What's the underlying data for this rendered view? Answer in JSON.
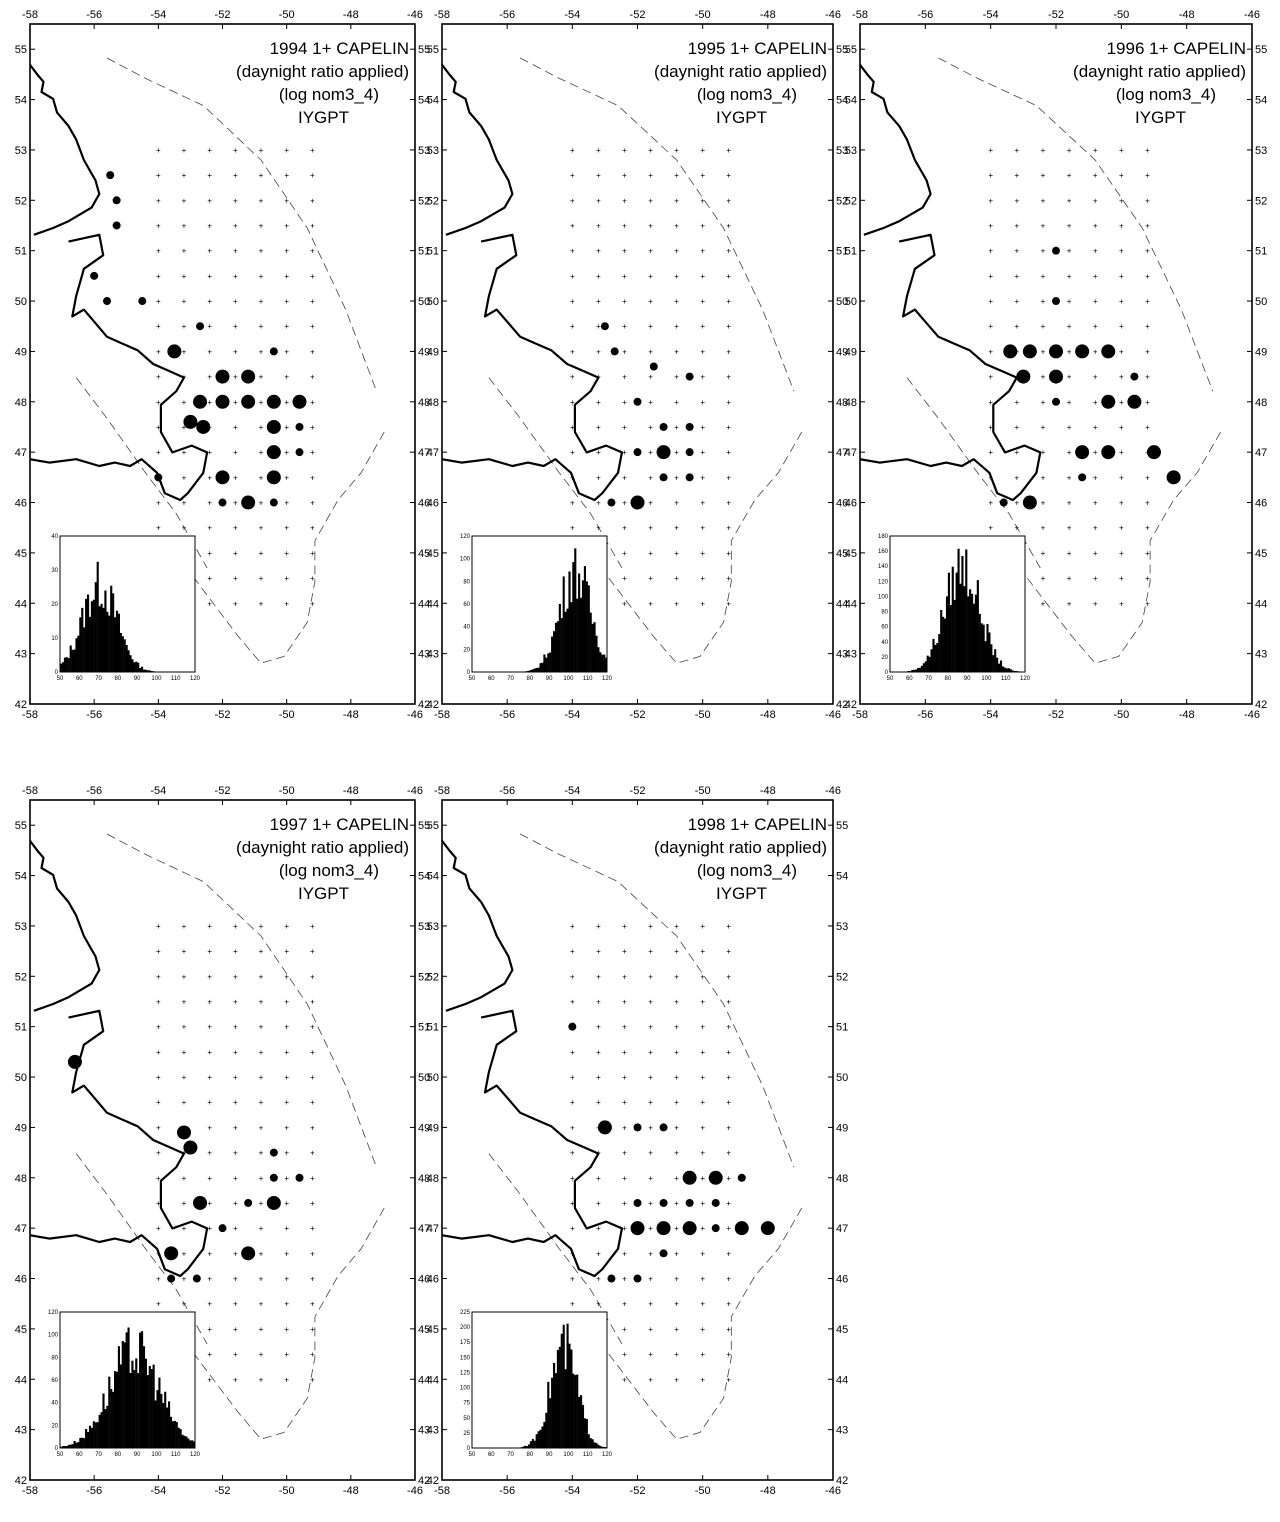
{
  "figure": {
    "axis": {
      "lon_ticks": [
        -58,
        -56,
        -54,
        -52,
        -50,
        -48,
        -46
      ],
      "lat_ticks": [
        42,
        43,
        44,
        45,
        46,
        47,
        48,
        49,
        50,
        51,
        52,
        53,
        54,
        55
      ],
      "lon_range": [
        -58,
        -46
      ],
      "lat_range": [
        42,
        55.5
      ]
    },
    "panels": [
      {
        "title_lines": [
          "1994 1+ CAPELIN",
          "(daynight ratio applied)",
          "(log nom3_4)",
          "IYGPT"
        ],
        "inset": {
          "x_ticks": [
            50,
            60,
            70,
            80,
            90,
            100,
            110,
            120
          ],
          "y_ticks": [
            0,
            10,
            20,
            30,
            40
          ],
          "y_max": 40,
          "peak_x": 70,
          "spread": 9,
          "peak_y": 30
        },
        "stations": [
          {
            "lon": -55.5,
            "lat": 52.5,
            "s": 2
          },
          {
            "lon": -55.3,
            "lat": 52.0,
            "s": 2
          },
          {
            "lon": -55.3,
            "lat": 51.5,
            "s": 2
          },
          {
            "lon": -56.0,
            "lat": 50.5,
            "s": 2
          },
          {
            "lon": -55.6,
            "lat": 50.0,
            "s": 2
          },
          {
            "lon": -54.5,
            "lat": 50.0,
            "s": 2
          },
          {
            "lon": -53.5,
            "lat": 49.0,
            "s": 3
          },
          {
            "lon": -52.7,
            "lat": 49.5,
            "s": 2
          },
          {
            "lon": -52.0,
            "lat": 48.5,
            "s": 3
          },
          {
            "lon": -51.2,
            "lat": 48.5,
            "s": 3
          },
          {
            "lon": -52.7,
            "lat": 48.0,
            "s": 3
          },
          {
            "lon": -52.0,
            "lat": 48.0,
            "s": 3
          },
          {
            "lon": -51.2,
            "lat": 48.0,
            "s": 3
          },
          {
            "lon": -50.4,
            "lat": 48.0,
            "s": 3
          },
          {
            "lon": -49.6,
            "lat": 48.0,
            "s": 3
          },
          {
            "lon": -53.0,
            "lat": 47.6,
            "s": 3
          },
          {
            "lon": -52.6,
            "lat": 47.5,
            "s": 3
          },
          {
            "lon": -50.4,
            "lat": 47.5,
            "s": 3
          },
          {
            "lon": -49.6,
            "lat": 47.5,
            "s": 2
          },
          {
            "lon": -50.4,
            "lat": 47.0,
            "s": 3
          },
          {
            "lon": -49.6,
            "lat": 47.0,
            "s": 2
          },
          {
            "lon": -54.0,
            "lat": 46.5,
            "s": 2
          },
          {
            "lon": -52.0,
            "lat": 46.5,
            "s": 3
          },
          {
            "lon": -50.4,
            "lat": 46.5,
            "s": 3
          },
          {
            "lon": -51.2,
            "lat": 46.0,
            "s": 3
          },
          {
            "lon": -52.0,
            "lat": 46.0,
            "s": 2
          },
          {
            "lon": -50.4,
            "lat": 46.0,
            "s": 2
          },
          {
            "lon": -50.4,
            "lat": 49.0,
            "s": 2
          }
        ]
      },
      {
        "title_lines": [
          "1995 1+ CAPELIN",
          "(daynight ratio applied)",
          "(log nom3_4)",
          "IYGPT"
        ],
        "inset": {
          "x_ticks": [
            50,
            60,
            70,
            80,
            90,
            100,
            110,
            120
          ],
          "y_ticks": [
            0,
            20,
            40,
            60,
            80,
            100,
            120
          ],
          "y_max": 120,
          "peak_x": 103,
          "spread": 8,
          "peak_y": 105
        },
        "stations": [
          {
            "lon": -53.0,
            "lat": 49.5,
            "s": 2
          },
          {
            "lon": -52.7,
            "lat": 49.0,
            "s": 2
          },
          {
            "lon": -51.5,
            "lat": 48.7,
            "s": 2
          },
          {
            "lon": -50.4,
            "lat": 48.5,
            "s": 2
          },
          {
            "lon": -52.0,
            "lat": 48.0,
            "s": 2
          },
          {
            "lon": -51.2,
            "lat": 47.5,
            "s": 2
          },
          {
            "lon": -50.4,
            "lat": 47.5,
            "s": 2
          },
          {
            "lon": -52.0,
            "lat": 47.0,
            "s": 2
          },
          {
            "lon": -51.2,
            "lat": 47.0,
            "s": 3
          },
          {
            "lon": -50.4,
            "lat": 47.0,
            "s": 2
          },
          {
            "lon": -51.2,
            "lat": 46.5,
            "s": 2
          },
          {
            "lon": -52.8,
            "lat": 46.0,
            "s": 2
          },
          {
            "lon": -52.0,
            "lat": 46.0,
            "s": 3
          },
          {
            "lon": -50.4,
            "lat": 46.5,
            "s": 2
          }
        ]
      },
      {
        "title_lines": [
          "1996 1+ CAPELIN",
          "(daynight ratio applied)",
          "(log nom3_4)",
          "IYGPT"
        ],
        "inset": {
          "x_ticks": [
            50,
            60,
            70,
            80,
            90,
            100,
            110,
            120
          ],
          "y_ticks": [
            0,
            20,
            40,
            60,
            80,
            100,
            120,
            140,
            160,
            180
          ],
          "y_max": 180,
          "peak_x": 87,
          "spread": 9,
          "peak_y": 165
        },
        "stations": [
          {
            "lon": -52.0,
            "lat": 51.0,
            "s": 2
          },
          {
            "lon": -52.0,
            "lat": 50.0,
            "s": 2
          },
          {
            "lon": -53.4,
            "lat": 49.0,
            "s": 3
          },
          {
            "lon": -52.8,
            "lat": 49.0,
            "s": 3
          },
          {
            "lon": -52.0,
            "lat": 49.0,
            "s": 3
          },
          {
            "lon": -51.2,
            "lat": 49.0,
            "s": 3
          },
          {
            "lon": -50.4,
            "lat": 49.0,
            "s": 3
          },
          {
            "lon": -53.0,
            "lat": 48.5,
            "s": 3
          },
          {
            "lon": -52.0,
            "lat": 48.5,
            "s": 3
          },
          {
            "lon": -50.4,
            "lat": 48.0,
            "s": 3
          },
          {
            "lon": -49.6,
            "lat": 48.0,
            "s": 3
          },
          {
            "lon": -52.0,
            "lat": 48.0,
            "s": 2
          },
          {
            "lon": -51.2,
            "lat": 47.0,
            "s": 3
          },
          {
            "lon": -50.4,
            "lat": 47.0,
            "s": 3
          },
          {
            "lon": -49.0,
            "lat": 47.0,
            "s": 3
          },
          {
            "lon": -48.4,
            "lat": 46.5,
            "s": 3
          },
          {
            "lon": -52.8,
            "lat": 46.0,
            "s": 3
          },
          {
            "lon": -53.6,
            "lat": 46.0,
            "s": 2
          },
          {
            "lon": -49.6,
            "lat": 48.5,
            "s": 2
          },
          {
            "lon": -51.2,
            "lat": 46.5,
            "s": 2
          }
        ]
      },
      {
        "title_lines": [
          "1997 1+ CAPELIN",
          "(daynight ratio applied)",
          "(log nom3_4)",
          "IYGPT"
        ],
        "inset": {
          "x_ticks": [
            50,
            60,
            70,
            80,
            90,
            100,
            110,
            120
          ],
          "y_ticks": [
            0,
            20,
            40,
            60,
            80,
            100,
            120
          ],
          "y_max": 120,
          "peak_x": 88,
          "spread": 13,
          "peak_y": 100
        },
        "stations": [
          {
            "lon": -56.6,
            "lat": 50.3,
            "s": 3
          },
          {
            "lon": -53.2,
            "lat": 48.9,
            "s": 3
          },
          {
            "lon": -53.0,
            "lat": 48.6,
            "s": 3
          },
          {
            "lon": -52.7,
            "lat": 47.5,
            "s": 3
          },
          {
            "lon": -50.4,
            "lat": 47.5,
            "s": 3
          },
          {
            "lon": -51.2,
            "lat": 47.5,
            "s": 2
          },
          {
            "lon": -51.2,
            "lat": 46.5,
            "s": 3
          },
          {
            "lon": -53.6,
            "lat": 46.5,
            "s": 3
          },
          {
            "lon": -53.6,
            "lat": 46.0,
            "s": 2
          },
          {
            "lon": -52.8,
            "lat": 46.0,
            "s": 2
          },
          {
            "lon": -50.4,
            "lat": 48.5,
            "s": 2
          },
          {
            "lon": -50.4,
            "lat": 48.0,
            "s": 2
          },
          {
            "lon": -49.6,
            "lat": 48.0,
            "s": 2
          },
          {
            "lon": -52.0,
            "lat": 47.0,
            "s": 2
          }
        ]
      },
      {
        "title_lines": [
          "1998 1+ CAPELIN",
          "(daynight ratio applied)",
          "(log nom3_4)",
          "IYGPT"
        ],
        "inset": {
          "x_ticks": [
            50,
            60,
            70,
            80,
            90,
            100,
            110,
            120
          ],
          "y_ticks": [
            0,
            25,
            50,
            75,
            100,
            125,
            150,
            175,
            200,
            225
          ],
          "y_max": 225,
          "peak_x": 97,
          "spread": 7,
          "peak_y": 195
        },
        "stations": [
          {
            "lon": -53.0,
            "lat": 49.0,
            "s": 3
          },
          {
            "lon": -52.0,
            "lat": 49.0,
            "s": 2
          },
          {
            "lon": -51.2,
            "lat": 49.0,
            "s": 2
          },
          {
            "lon": -50.4,
            "lat": 48.0,
            "s": 3
          },
          {
            "lon": -49.6,
            "lat": 48.0,
            "s": 3
          },
          {
            "lon": -48.8,
            "lat": 48.0,
            "s": 2
          },
          {
            "lon": -52.0,
            "lat": 47.5,
            "s": 2
          },
          {
            "lon": -51.2,
            "lat": 47.5,
            "s": 2
          },
          {
            "lon": -50.4,
            "lat": 47.5,
            "s": 2
          },
          {
            "lon": -49.6,
            "lat": 47.5,
            "s": 2
          },
          {
            "lon": -52.0,
            "lat": 47.0,
            "s": 3
          },
          {
            "lon": -51.2,
            "lat": 47.0,
            "s": 3
          },
          {
            "lon": -50.4,
            "lat": 47.0,
            "s": 3
          },
          {
            "lon": -49.6,
            "lat": 47.0,
            "s": 2
          },
          {
            "lon": -48.8,
            "lat": 47.0,
            "s": 3
          },
          {
            "lon": -48.0,
            "lat": 47.0,
            "s": 3
          },
          {
            "lon": -51.2,
            "lat": 46.5,
            "s": 2
          },
          {
            "lon": -52.8,
            "lat": 46.0,
            "s": 2
          },
          {
            "lon": -52.0,
            "lat": 46.0,
            "s": 2
          },
          {
            "lon": -54.0,
            "lat": 51.0,
            "s": 2
          }
        ]
      }
    ]
  }
}
